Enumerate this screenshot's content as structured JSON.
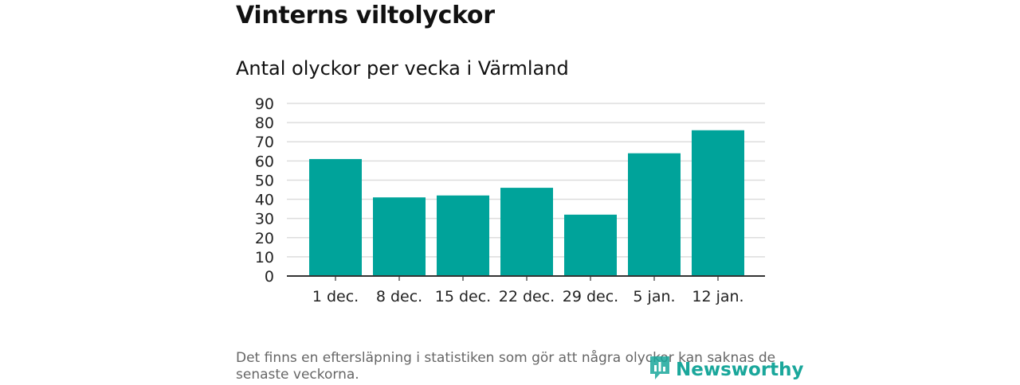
{
  "header": {
    "title": "Vinterns viltolyckor",
    "subtitle": "Antal olyckor per vecka i Värmland"
  },
  "footer": {
    "note": "Det finns en eftersläpning i statistiken som gör att några olyckor kan saknas de senaste veckorna.",
    "brand": "Newsworthy"
  },
  "colors": {
    "bar": "#00a39a",
    "grid": "#dddddd",
    "axis": "#333333",
    "brand": "#1aa79b"
  },
  "chart_data": {
    "type": "bar",
    "title": "Vinterns viltolyckor",
    "subtitle": "Antal olyckor per vecka i Värmland",
    "xlabel": "",
    "ylabel": "",
    "categories": [
      "1 dec.",
      "8 dec.",
      "15 dec.",
      "22 dec.",
      "29 dec.",
      "5 jan.",
      "12 jan."
    ],
    "values": [
      61,
      41,
      42,
      46,
      32,
      64,
      76
    ],
    "ylim": [
      0,
      90
    ],
    "yticks": [
      0,
      10,
      20,
      30,
      40,
      50,
      60,
      70,
      80,
      90
    ],
    "grid": true,
    "legend": "none"
  }
}
